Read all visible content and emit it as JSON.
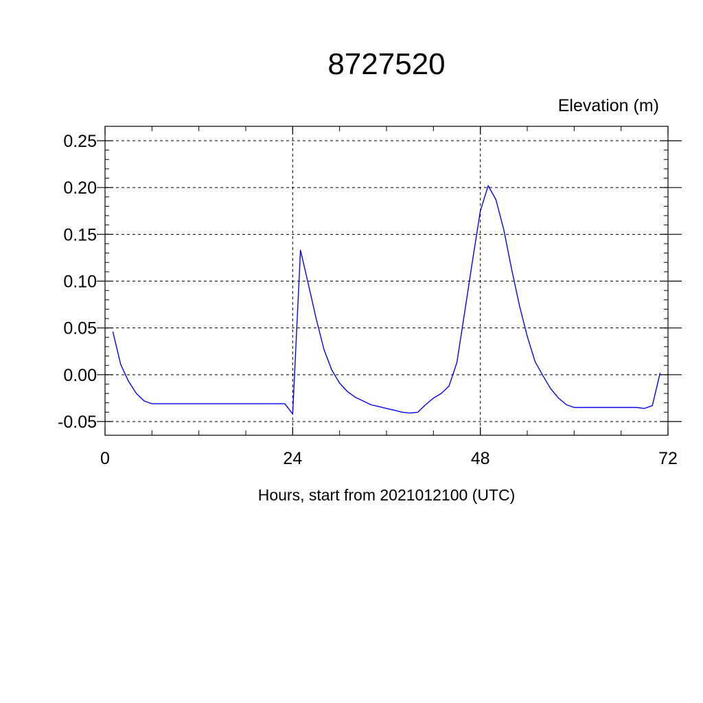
{
  "chart_data": {
    "type": "line",
    "title": "8727520",
    "subtitle": "Elevation (m)",
    "xlabel": "Hours, start from 2021012100 (UTC)",
    "ylabel": "",
    "xlim": [
      0,
      72
    ],
    "ylim": [
      -0.05,
      0.25
    ],
    "x_ticks": [
      0,
      24,
      48,
      72
    ],
    "x_tick_labels": [
      "0",
      "24",
      "48",
      "72"
    ],
    "y_ticks": [
      -0.05,
      0.0,
      0.05,
      0.1,
      0.15,
      0.2,
      0.25
    ],
    "y_tick_labels": [
      "-0.05",
      "0.00",
      "0.05",
      "0.10",
      "0.15",
      "0.20",
      "0.25"
    ],
    "grid": true,
    "grid_style": "dashed",
    "series": [
      {
        "color": "#0000ff",
        "x": [
          1,
          2,
          3,
          4,
          5,
          6,
          7,
          8,
          9,
          10,
          11,
          12,
          13,
          14,
          15,
          16,
          17,
          18,
          19,
          20,
          21,
          22,
          23,
          24,
          25,
          26,
          27,
          28,
          29,
          30,
          31,
          32,
          33,
          34,
          35,
          36,
          37,
          38,
          39,
          40,
          41,
          42,
          43,
          44,
          45,
          46,
          47,
          48,
          49,
          50,
          51,
          52,
          53,
          54,
          55,
          56,
          57,
          58,
          59,
          60,
          61,
          62,
          63,
          64,
          65,
          66,
          67,
          68,
          69,
          70,
          71
        ],
        "y": [
          0.046,
          0.011,
          -0.007,
          -0.02,
          -0.028,
          -0.031,
          -0.031,
          -0.031,
          -0.031,
          -0.031,
          -0.031,
          -0.031,
          -0.031,
          -0.031,
          -0.031,
          -0.031,
          -0.031,
          -0.031,
          -0.031,
          -0.031,
          -0.031,
          -0.031,
          -0.031,
          -0.042,
          0.133,
          0.097,
          0.06,
          0.027,
          0.005,
          -0.009,
          -0.018,
          -0.024,
          -0.028,
          -0.032,
          -0.034,
          -0.036,
          -0.038,
          -0.04,
          -0.041,
          -0.04,
          -0.032,
          -0.025,
          -0.02,
          -0.012,
          0.013,
          0.067,
          0.122,
          0.175,
          0.202,
          0.187,
          0.155,
          0.113,
          0.074,
          0.041,
          0.014,
          -0.001,
          -0.015,
          -0.025,
          -0.032,
          -0.035,
          -0.035,
          -0.035,
          -0.035,
          -0.035,
          -0.035,
          -0.035,
          -0.035,
          -0.035,
          -0.036,
          -0.033,
          0.002
        ]
      }
    ]
  }
}
